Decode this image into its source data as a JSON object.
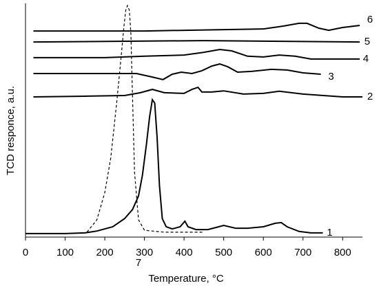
{
  "chart_data": {
    "type": "line",
    "xlabel": "Temperature, °C",
    "ylabel": "TCD responce, a.u.",
    "xlim": [
      0,
      850
    ],
    "xticks": [
      0,
      100,
      200,
      300,
      400,
      500,
      600,
      700,
      800
    ],
    "ylim": [
      0,
      100
    ],
    "grid": false,
    "series": [
      {
        "name": "1",
        "color": "#000000",
        "style": "solid",
        "x": [
          0,
          100,
          150,
          180,
          220,
          250,
          270,
          285,
          295,
          305,
          313,
          320,
          326,
          332,
          338,
          345,
          355,
          370,
          390,
          402,
          410,
          430,
          460,
          480,
          500,
          530,
          560,
          600,
          630,
          645,
          660,
          690,
          720,
          750
        ],
        "values": [
          1.5,
          1.5,
          1.8,
          2.6,
          4.4,
          7.9,
          11.8,
          17.6,
          26.5,
          39.7,
          51.5,
          58.8,
          57.4,
          42.6,
          22.1,
          7.9,
          4.4,
          3.5,
          4.4,
          6.8,
          4.4,
          3.2,
          3.2,
          4.1,
          5,
          3.8,
          3.8,
          4.4,
          5.9,
          6.2,
          4.4,
          2.4,
          1.8,
          1.8
        ]
      },
      {
        "name": "2",
        "color": "#000000",
        "style": "solid",
        "x": [
          20,
          150,
          250,
          290,
          320,
          350,
          400,
          420,
          435,
          445,
          470,
          500,
          550,
          600,
          640,
          700,
          800,
          850
        ],
        "values": [
          60,
          60.3,
          60.6,
          61.8,
          63.2,
          61.8,
          61.5,
          63.2,
          64.1,
          62.1,
          62.1,
          62.6,
          61.2,
          61.5,
          62.4,
          61.2,
          60,
          60
        ]
      },
      {
        "name": "3",
        "color": "#000000",
        "style": "solid",
        "x": [
          20,
          200,
          280,
          320,
          347,
          370,
          393,
          420,
          445,
          470,
          490,
          510,
          535,
          570,
          620,
          660,
          700,
          745
        ],
        "values": [
          70,
          70,
          70,
          68.5,
          67.4,
          69.7,
          70.6,
          70,
          71.2,
          73.2,
          74.1,
          72.9,
          70.6,
          70.9,
          71.8,
          71.5,
          70.3,
          69.7
        ]
      },
      {
        "name": "4",
        "color": "#000000",
        "style": "solid",
        "x": [
          20,
          200,
          300,
          400,
          450,
          490,
          520,
          560,
          600,
          640,
          680,
          720,
          780,
          843
        ],
        "values": [
          76.8,
          76.8,
          77.4,
          77.9,
          79.1,
          80.3,
          79.7,
          77.4,
          77.1,
          77.9,
          77.4,
          76.2,
          76.2,
          76.2
        ]
      },
      {
        "name": "5",
        "color": "#000000",
        "style": "solid",
        "x": [
          20,
          450,
          843
        ],
        "values": [
          83.5,
          84.1,
          83.5
        ]
      },
      {
        "name": "6",
        "color": "#000000",
        "style": "solid",
        "x": [
          20,
          300,
          500,
          600,
          650,
          690,
          710,
          740,
          765,
          800,
          843
        ],
        "values": [
          88.2,
          88.2,
          88.8,
          89.1,
          90.3,
          91.5,
          91.5,
          89.4,
          88.5,
          89.7,
          90.6
        ]
      },
      {
        "name": "7",
        "color": "#000000",
        "style": "dashed",
        "x": [
          155,
          180,
          200,
          215,
          230,
          240,
          248,
          253,
          257,
          262,
          266,
          270,
          275,
          285,
          300,
          350,
          450
        ],
        "values": [
          2.1,
          7.4,
          19.1,
          33.8,
          57.4,
          75,
          89.7,
          97.1,
          99.1,
          97.1,
          86.8,
          60.3,
          27.9,
          7.4,
          2.9,
          2.1,
          2.1
        ]
      }
    ]
  }
}
